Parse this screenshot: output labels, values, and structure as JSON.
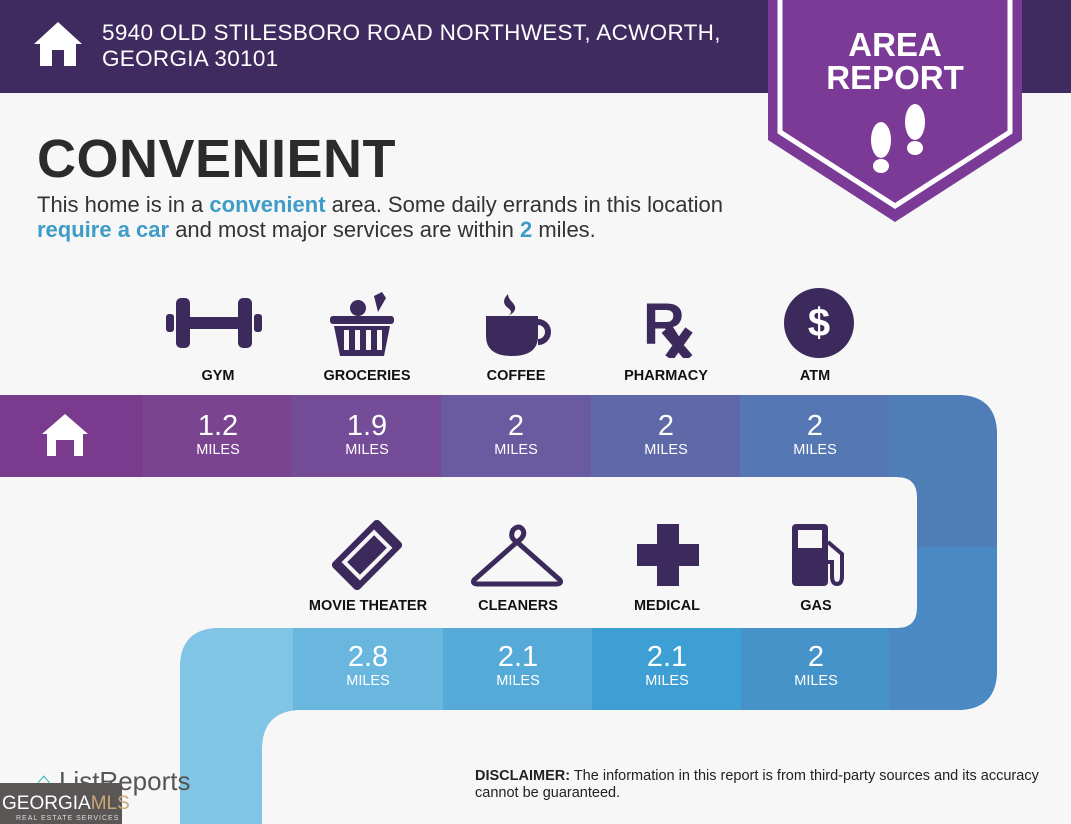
{
  "header": {
    "address": "5940 OLD STILESBORO ROAD NORTHWEST, ACWORTH, GEORGIA 30101",
    "badge_line1": "AREA",
    "badge_line2": "REPORT"
  },
  "main": {
    "title": "CONVENIENT",
    "desc": {
      "p1": "This home is in a ",
      "h1": "convenient",
      "p2": " area. Some daily errands in this location ",
      "h2": "require a car",
      "p3": " and most major services are within ",
      "h3": "2",
      "p4": " miles."
    }
  },
  "unit": "MILES",
  "row1": [
    {
      "label": "GYM",
      "value": "1.2",
      "icon": "dumbbell-icon"
    },
    {
      "label": "GROCERIES",
      "value": "1.9",
      "icon": "basket-icon"
    },
    {
      "label": "COFFEE",
      "value": "2",
      "icon": "coffee-cup-icon"
    },
    {
      "label": "PHARMACY",
      "value": "2",
      "icon": "rx-icon"
    },
    {
      "label": "ATM",
      "value": "2",
      "icon": "dollar-icon"
    }
  ],
  "row2": [
    {
      "label": "MOVIE THEATER",
      "value": "2.8",
      "icon": "ticket-icon"
    },
    {
      "label": "CLEANERS",
      "value": "2.1",
      "icon": "hanger-icon"
    },
    {
      "label": "MEDICAL",
      "value": "2.1",
      "icon": "medical-cross-icon"
    },
    {
      "label": "GAS",
      "value": "2",
      "icon": "gas-pump-icon"
    }
  ],
  "footer": {
    "logo": "ListReports",
    "mls1": "GEORGIA",
    "mls2": "MLS",
    "mls_sub": "REAL ESTATE SERVICES",
    "disclaimer_label": "DISCLAIMER:",
    "disclaimer": " The information in this report is from third-party sources and its accuracy cannot be guaranteed."
  },
  "colors": {
    "header": "#3f2b5f",
    "badge": "#7b3a96",
    "icon": "#3d2a5c",
    "highlight": "#3f9bc7"
  }
}
